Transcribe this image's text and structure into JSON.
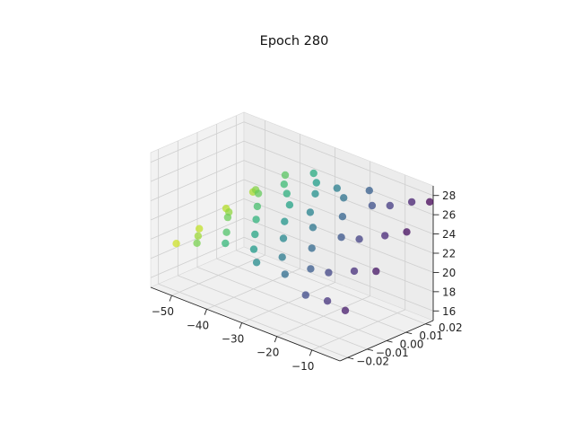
{
  "chart_data": {
    "type": "scatter",
    "projection": "3d",
    "title": "Epoch 280",
    "xlabel": "",
    "ylabel": "",
    "zlabel": "",
    "colormap": "viridis",
    "color_by": "x",
    "point_alpha": 0.75,
    "xlim": [
      -56,
      -2
    ],
    "ylim": [
      -0.024,
      0.024
    ],
    "zlim": [
      15,
      29
    ],
    "x_ticks": [
      -50,
      -40,
      -30,
      -20,
      -10
    ],
    "y_ticks": [
      -0.02,
      -0.01,
      0.0,
      0.01,
      0.02
    ],
    "z_ticks": [
      16,
      18,
      20,
      22,
      24,
      26,
      28
    ],
    "x_tick_labels": [
      "−50",
      "−40",
      "−30",
      "−20",
      "−10"
    ],
    "y_tick_labels": [
      "−0.02",
      "−0.01",
      "0.00",
      "0.01",
      "0.02"
    ],
    "z_tick_labels": [
      "16",
      "18",
      "20",
      "22",
      "24",
      "26",
      "28"
    ],
    "grid": true,
    "legend": "none",
    "points": [
      {
        "x": -52,
        "y": -0.018,
        "z": 19.6
      },
      {
        "x": -51,
        "y": -0.008,
        "z": 20.4
      },
      {
        "x": -50,
        "y": 0.004,
        "z": 21.6
      },
      {
        "x": -49,
        "y": 0.016,
        "z": 22.4
      },
      {
        "x": -48,
        "y": -0.014,
        "z": 20.6
      },
      {
        "x": -47,
        "y": 0.0,
        "z": 22.0
      },
      {
        "x": -46,
        "y": 0.012,
        "z": 23.4
      },
      {
        "x": -45,
        "y": -0.02,
        "z": 20.8
      },
      {
        "x": -44,
        "y": -0.006,
        "z": 22.4
      },
      {
        "x": -43,
        "y": 0.008,
        "z": 23.8
      },
      {
        "x": -42,
        "y": 0.02,
        "z": 24.8
      },
      {
        "x": -41,
        "y": -0.012,
        "z": 21.8
      },
      {
        "x": -40,
        "y": 0.002,
        "z": 23.4
      },
      {
        "x": -39,
        "y": 0.014,
        "z": 24.8
      },
      {
        "x": -38,
        "y": -0.018,
        "z": 21.6
      },
      {
        "x": -37,
        "y": -0.004,
        "z": 23.0
      },
      {
        "x": -36,
        "y": 0.01,
        "z": 24.6
      },
      {
        "x": -35,
        "y": 0.022,
        "z": 25.8
      },
      {
        "x": -34,
        "y": -0.01,
        "z": 22.4
      },
      {
        "x": -33,
        "y": 0.006,
        "z": 24.2
      },
      {
        "x": -32,
        "y": 0.018,
        "z": 25.6
      },
      {
        "x": -31,
        "y": -0.016,
        "z": 21.8
      },
      {
        "x": -30,
        "y": -0.002,
        "z": 23.6
      },
      {
        "x": -29,
        "y": 0.012,
        "z": 25.4
      },
      {
        "x": -28,
        "y": -0.02,
        "z": 21.2
      },
      {
        "x": -27,
        "y": -0.008,
        "z": 22.8
      },
      {
        "x": -26,
        "y": 0.004,
        "z": 24.6
      },
      {
        "x": -25,
        "y": 0.016,
        "z": 26.2
      },
      {
        "x": -24,
        "y": -0.014,
        "z": 21.8
      },
      {
        "x": -23,
        "y": 0.0,
        "z": 23.8
      },
      {
        "x": -22,
        "y": 0.014,
        "z": 25.8
      },
      {
        "x": -21,
        "y": -0.018,
        "z": 20.8
      },
      {
        "x": -20,
        "y": -0.006,
        "z": 22.6
      },
      {
        "x": -19,
        "y": 0.008,
        "z": 24.8
      },
      {
        "x": -18,
        "y": 0.02,
        "z": 26.6
      },
      {
        "x": -17,
        "y": -0.012,
        "z": 21.4
      },
      {
        "x": -16,
        "y": 0.002,
        "z": 23.6
      },
      {
        "x": -15,
        "y": 0.016,
        "z": 25.8
      },
      {
        "x": -14,
        "y": -0.02,
        "z": 19.8
      },
      {
        "x": -13,
        "y": -0.01,
        "z": 21.4
      },
      {
        "x": -12,
        "y": 0.004,
        "z": 23.8
      },
      {
        "x": -11,
        "y": 0.018,
        "z": 26.2
      },
      {
        "x": -10,
        "y": -0.016,
        "z": 19.4
      },
      {
        "x": -9,
        "y": -0.004,
        "z": 21.6
      },
      {
        "x": -8,
        "y": 0.01,
        "z": 24.2
      },
      {
        "x": -7,
        "y": 0.022,
        "z": 26.8
      },
      {
        "x": -6,
        "y": -0.014,
        "z": 18.8
      },
      {
        "x": -5,
        "y": 0.0,
        "z": 21.8
      },
      {
        "x": -4,
        "y": 0.014,
        "z": 24.8
      },
      {
        "x": -3,
        "y": 0.024,
        "z": 27.2
      }
    ]
  }
}
